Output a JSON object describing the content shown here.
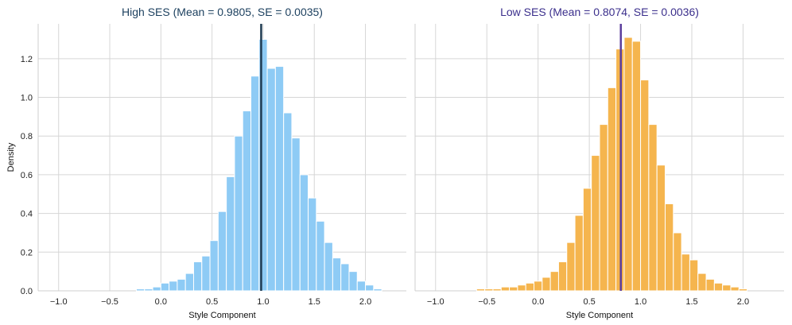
{
  "chart_data": [
    {
      "type": "bar",
      "title": "High SES  (Mean = 0.9805, SE = 0.0035)",
      "title_color": "#1b3f5e",
      "xlabel": "Style Component",
      "ylabel": "Density",
      "xlim": [
        -1.2,
        2.4
      ],
      "ylim": [
        0,
        1.38
      ],
      "xticks": [
        -1.0,
        -0.5,
        0.0,
        0.5,
        1.0,
        1.5,
        2.0
      ],
      "xtick_labels": [
        "−1.0",
        "−0.5",
        "0.0",
        "0.5",
        "1.0",
        "1.5",
        "2.0"
      ],
      "yticks": [
        0.0,
        0.2,
        0.4,
        0.6,
        0.8,
        1.0,
        1.2
      ],
      "ytick_labels": [
        "0.0",
        "0.2",
        "0.4",
        "0.6",
        "0.8",
        "1.0",
        "1.2"
      ],
      "grid": true,
      "bar_color": "#8ecbf5",
      "mean_line": {
        "value": 0.9805,
        "color": "#1f3b52"
      },
      "bin_width": 0.08,
      "bins": [
        [
          -0.24,
          0.01
        ],
        [
          -0.16,
          0.01
        ],
        [
          -0.08,
          0.02
        ],
        [
          0.0,
          0.04
        ],
        [
          0.08,
          0.05
        ],
        [
          0.16,
          0.06
        ],
        [
          0.24,
          0.09
        ],
        [
          0.32,
          0.15
        ],
        [
          0.4,
          0.18
        ],
        [
          0.48,
          0.26
        ],
        [
          0.56,
          0.41
        ],
        [
          0.64,
          0.59
        ],
        [
          0.72,
          0.8
        ],
        [
          0.8,
          0.93
        ],
        [
          0.88,
          1.11
        ],
        [
          0.96,
          1.3
        ],
        [
          1.04,
          1.15
        ],
        [
          1.12,
          1.16
        ],
        [
          1.2,
          0.92
        ],
        [
          1.28,
          0.79
        ],
        [
          1.36,
          0.6
        ],
        [
          1.44,
          0.48
        ],
        [
          1.52,
          0.36
        ],
        [
          1.6,
          0.25
        ],
        [
          1.68,
          0.17
        ],
        [
          1.76,
          0.14
        ],
        [
          1.84,
          0.1
        ],
        [
          1.92,
          0.05
        ],
        [
          2.0,
          0.03
        ],
        [
          2.08,
          0.01
        ]
      ]
    },
    {
      "type": "bar",
      "title": "Low SES  (Mean = 0.8074, SE = 0.0036)",
      "title_color": "#3b2f8c",
      "xlabel": "Style Component",
      "ylabel": "",
      "xlim": [
        -1.2,
        2.4
      ],
      "ylim": [
        0,
        1.38
      ],
      "xticks": [
        -1.0,
        -0.5,
        0.0,
        0.5,
        1.0,
        1.5,
        2.0
      ],
      "xtick_labels": [
        "−1.0",
        "−0.5",
        "0.0",
        "0.5",
        "1.0",
        "1.5",
        "2.0"
      ],
      "yticks": [
        0.0,
        0.2,
        0.4,
        0.6,
        0.8,
        1.0,
        1.2
      ],
      "grid": true,
      "bar_color": "#f5b54e",
      "mean_line": {
        "value": 0.8074,
        "color": "#5b3e9c"
      },
      "bin_width": 0.08,
      "bins": [
        [
          -0.6,
          0.01
        ],
        [
          -0.52,
          0.01
        ],
        [
          -0.44,
          0.01
        ],
        [
          -0.36,
          0.02
        ],
        [
          -0.28,
          0.02
        ],
        [
          -0.2,
          0.03
        ],
        [
          -0.12,
          0.04
        ],
        [
          -0.04,
          0.05
        ],
        [
          0.04,
          0.07
        ],
        [
          0.12,
          0.1
        ],
        [
          0.2,
          0.15
        ],
        [
          0.28,
          0.25
        ],
        [
          0.36,
          0.39
        ],
        [
          0.44,
          0.53
        ],
        [
          0.52,
          0.7
        ],
        [
          0.6,
          0.86
        ],
        [
          0.68,
          1.05
        ],
        [
          0.76,
          1.25
        ],
        [
          0.84,
          1.31
        ],
        [
          0.92,
          1.29
        ],
        [
          1.0,
          1.09
        ],
        [
          1.08,
          0.86
        ],
        [
          1.16,
          0.65
        ],
        [
          1.24,
          0.45
        ],
        [
          1.32,
          0.3
        ],
        [
          1.4,
          0.19
        ],
        [
          1.48,
          0.16
        ],
        [
          1.56,
          0.09
        ],
        [
          1.64,
          0.06
        ],
        [
          1.72,
          0.04
        ],
        [
          1.8,
          0.03
        ],
        [
          1.88,
          0.02
        ],
        [
          1.96,
          0.01
        ]
      ]
    }
  ]
}
